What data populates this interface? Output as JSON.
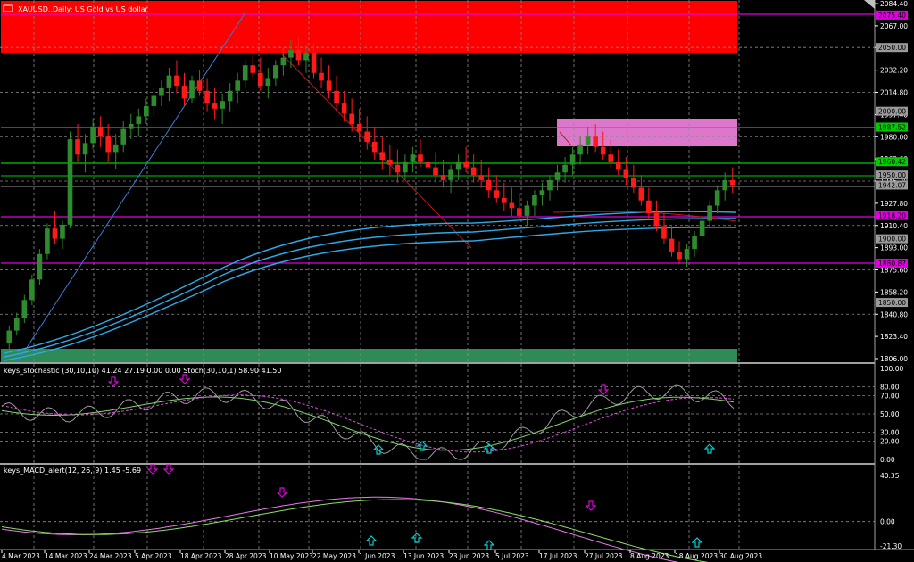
{
  "window": {
    "symbol_title": "XAUUSD.,Daily: US Gold vs US dollar"
  },
  "panels": {
    "stochastic_label": "keys_stochastic (30,10,10) 41.24 27.19 0.00 0.00 Stoch(30,10,1) 58.90 41.50",
    "macd_label": "keys_MACD_alert(12, 26, 9) 1.45 -5.69"
  },
  "colors": {
    "background": "#000000",
    "bull_candle": "#2e8b2e",
    "bear_candle": "#ff1a1a",
    "supply_zone": "#ff0000",
    "demand_zone": "#2e8b57",
    "mid_zone": "#dd77cc",
    "green_level": "#00cc00",
    "magenta_level": "#e000e0",
    "ma_band": "#2fa8e6",
    "stoch_main": "#9c9c9c",
    "stoch_signal": "#7fd36a",
    "macd_main": "#e879e8",
    "macd_signal": "#8fdc6a",
    "up_arrow": "#00d0d0",
    "down_arrow": "#e000e0"
  },
  "price_axis": {
    "ticks": [
      "2084.40",
      "2067.00",
      "2050.00",
      "2032.20",
      "2014.80",
      "1997.40",
      "1980.00",
      "1962.60",
      "1945.20",
      "1927.80",
      "1910.40",
      "1893.00",
      "1875.60",
      "1858.20",
      "1840.80",
      "1823.40",
      "1806.00"
    ]
  },
  "price_tags": [
    {
      "text": "2075.40",
      "color": "#e000e0"
    },
    {
      "text": "2050.00",
      "color": "#9a9a9a"
    },
    {
      "text": "2000.00",
      "color": "#9a9a9a"
    },
    {
      "text": "1987.52",
      "color": "#00cc00"
    },
    {
      "text": "1960.42",
      "color": "#00cc00"
    },
    {
      "text": "1950.00",
      "color": "#9a9a9a"
    },
    {
      "text": "1942.07",
      "color": "#9a9a9a"
    },
    {
      "text": "1918.20",
      "color": "#e000e0"
    },
    {
      "text": "1900.00",
      "color": "#9a9a9a"
    },
    {
      "text": "1880.87",
      "color": "#e000e0"
    },
    {
      "text": "1850.00",
      "color": "#9a9a9a"
    }
  ],
  "stoch_axis": {
    "ticks": [
      "100.00",
      "80.00",
      "70.00",
      "50.00",
      "30.00",
      "20.00",
      "0.00"
    ]
  },
  "macd_axis": {
    "ticks": [
      "40.35",
      "0.00",
      "-21.30"
    ]
  },
  "time_axis": {
    "labels": [
      "4 Mar 2023",
      "14 Mar 2023",
      "24 Mar 2023",
      "5 Apr 2023",
      "18 Apr 2023",
      "28 Apr 2023",
      "10 May 2023",
      "22 May 2023",
      "1 Jun 2023",
      "13 Jun 2023",
      "23 Jun 2023",
      "5 Jul 2023",
      "17 Jul 2023",
      "27 Jul 2023",
      "8 Aug 2023",
      "18 Aug 2023",
      "30 Aug 2023"
    ]
  },
  "chart_data": {
    "type": "candlestick",
    "ohlc": [
      [
        1818,
        1832,
        1812,
        1828
      ],
      [
        1828,
        1842,
        1824,
        1838
      ],
      [
        1838,
        1856,
        1834,
        1852
      ],
      [
        1852,
        1872,
        1848,
        1868
      ],
      [
        1868,
        1892,
        1864,
        1888
      ],
      [
        1888,
        1912,
        1884,
        1908
      ],
      [
        1908,
        1922,
        1896,
        1900
      ],
      [
        1900,
        1914,
        1892,
        1911
      ],
      [
        1911,
        1984,
        1908,
        1978
      ],
      [
        1978,
        1990,
        1960,
        1966
      ],
      [
        1966,
        1982,
        1952,
        1975
      ],
      [
        1975,
        1994,
        1970,
        1988
      ],
      [
        1988,
        1996,
        1972,
        1980
      ],
      [
        1980,
        1990,
        1960,
        1968
      ],
      [
        1968,
        1982,
        1955,
        1974
      ],
      [
        1974,
        1992,
        1968,
        1986
      ],
      [
        1986,
        1998,
        1978,
        1990
      ],
      [
        1990,
        2002,
        1980,
        1996
      ],
      [
        1996,
        2010,
        1990,
        2004
      ],
      [
        2004,
        2018,
        1996,
        2012
      ],
      [
        2012,
        2024,
        2004,
        2018
      ],
      [
        2018,
        2034,
        2008,
        2028
      ],
      [
        2028,
        2040,
        2014,
        2020
      ],
      [
        2020,
        2030,
        2004,
        2010
      ],
      [
        2010,
        2028,
        2006,
        2024
      ],
      [
        2024,
        2032,
        2012,
        2016
      ],
      [
        2016,
        2026,
        2000,
        2006
      ],
      [
        2006,
        2018,
        1994,
        2002
      ],
      [
        2002,
        2014,
        1990,
        2008
      ],
      [
        2008,
        2022,
        2000,
        2016
      ],
      [
        2016,
        2030,
        2006,
        2024
      ],
      [
        2024,
        2040,
        2018,
        2036
      ],
      [
        2036,
        2048,
        2026,
        2030
      ],
      [
        2030,
        2042,
        2016,
        2020
      ],
      [
        2020,
        2034,
        2010,
        2026
      ],
      [
        2026,
        2040,
        2020,
        2036
      ],
      [
        2036,
        2050,
        2028,
        2042
      ],
      [
        2042,
        2056,
        2034,
        2048
      ],
      [
        2048,
        2058,
        2036,
        2040
      ],
      [
        2040,
        2052,
        2030,
        2046
      ],
      [
        2046,
        2054,
        2026,
        2030
      ],
      [
        2030,
        2042,
        2018,
        2024
      ],
      [
        2024,
        2036,
        2010,
        2016
      ],
      [
        2016,
        2028,
        2000,
        2006
      ],
      [
        2006,
        2016,
        1992,
        1998
      ],
      [
        1998,
        2010,
        1984,
        1990
      ],
      [
        1990,
        2002,
        1976,
        1984
      ],
      [
        1984,
        1996,
        1970,
        1976
      ],
      [
        1976,
        1988,
        1962,
        1968
      ],
      [
        1968,
        1980,
        1954,
        1962
      ],
      [
        1962,
        1974,
        1950,
        1958
      ],
      [
        1958,
        1970,
        1944,
        1952
      ],
      [
        1952,
        1966,
        1946,
        1960
      ],
      [
        1960,
        1972,
        1952,
        1966
      ],
      [
        1966,
        1978,
        1956,
        1960
      ],
      [
        1960,
        1972,
        1950,
        1956
      ],
      [
        1956,
        1968,
        1944,
        1950
      ],
      [
        1950,
        1962,
        1940,
        1946
      ],
      [
        1946,
        1958,
        1936,
        1954
      ],
      [
        1954,
        1966,
        1946,
        1960
      ],
      [
        1960,
        1972,
        1952,
        1956
      ],
      [
        1956,
        1966,
        1944,
        1950
      ],
      [
        1950,
        1962,
        1940,
        1946
      ],
      [
        1946,
        1956,
        1932,
        1938
      ],
      [
        1938,
        1950,
        1928,
        1932
      ],
      [
        1932,
        1944,
        1922,
        1928
      ],
      [
        1928,
        1940,
        1918,
        1924
      ],
      [
        1924,
        1936,
        1914,
        1918
      ],
      [
        1918,
        1930,
        1910,
        1926
      ],
      [
        1926,
        1938,
        1918,
        1934
      ],
      [
        1934,
        1944,
        1926,
        1938
      ],
      [
        1938,
        1950,
        1930,
        1946
      ],
      [
        1946,
        1958,
        1938,
        1952
      ],
      [
        1952,
        1964,
        1944,
        1958
      ],
      [
        1958,
        1972,
        1950,
        1966
      ],
      [
        1966,
        1980,
        1958,
        1974
      ],
      [
        1974,
        1988,
        1966,
        1980
      ],
      [
        1980,
        1990,
        1968,
        1972
      ],
      [
        1972,
        1984,
        1962,
        1966
      ],
      [
        1966,
        1978,
        1956,
        1960
      ],
      [
        1960,
        1970,
        1950,
        1954
      ],
      [
        1954,
        1964,
        1942,
        1948
      ],
      [
        1948,
        1958,
        1936,
        1940
      ],
      [
        1940,
        1950,
        1926,
        1930
      ],
      [
        1930,
        1940,
        1916,
        1920
      ],
      [
        1920,
        1930,
        1906,
        1910
      ],
      [
        1910,
        1920,
        1896,
        1900
      ],
      [
        1900,
        1910,
        1886,
        1890
      ],
      [
        1890,
        1898,
        1880,
        1884
      ],
      [
        1884,
        1896,
        1878,
        1892
      ],
      [
        1892,
        1906,
        1886,
        1902
      ],
      [
        1902,
        1918,
        1896,
        1914
      ],
      [
        1914,
        1930,
        1908,
        1926
      ],
      [
        1926,
        1942,
        1920,
        1938
      ],
      [
        1938,
        1952,
        1930,
        1946
      ],
      [
        1946,
        1956,
        1936,
        1942
      ]
    ],
    "levels": [
      2075.4,
      1987.52,
      1960.42,
      1950.0,
      1918.2,
      1880.87
    ]
  }
}
